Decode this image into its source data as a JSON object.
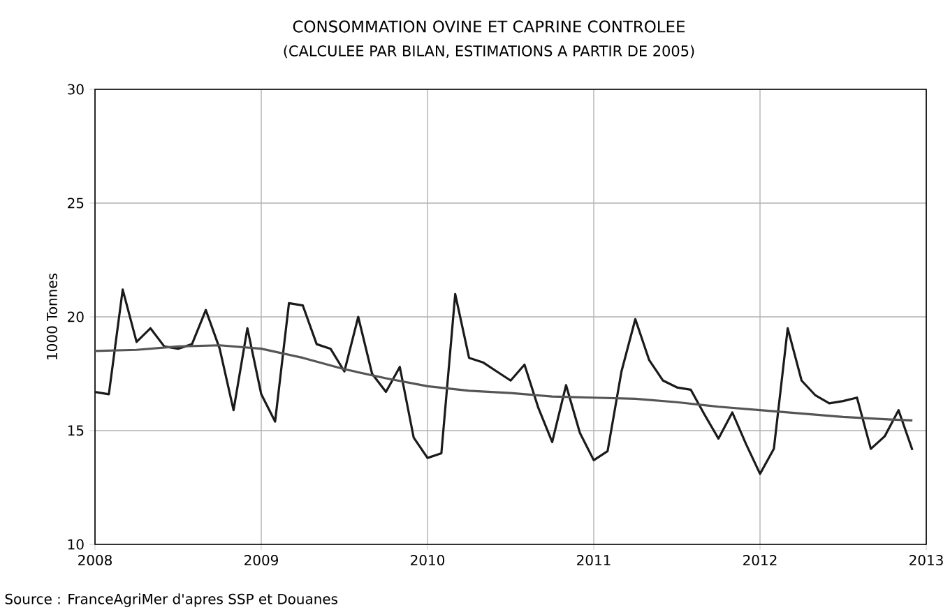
{
  "chart_data": {
    "type": "line",
    "title": "CONSOMMATION OVINE ET CAPRINE CONTROLEE",
    "subtitle": "(CALCULEE PAR BILAN, ESTIMATIONS A PARTIR DE 2005)",
    "ylabel": "1000 Tonnes",
    "annotations": [
      "Source : FranceAgriMer d'apres SSP et Douanes"
    ],
    "x": [
      "2008-01",
      "2008-02",
      "2008-03",
      "2008-04",
      "2008-05",
      "2008-06",
      "2008-07",
      "2008-08",
      "2008-09",
      "2008-10",
      "2008-11",
      "2008-12",
      "2009-01",
      "2009-02",
      "2009-03",
      "2009-04",
      "2009-05",
      "2009-06",
      "2009-07",
      "2009-08",
      "2009-09",
      "2009-10",
      "2009-11",
      "2009-12",
      "2010-01",
      "2010-02",
      "2010-03",
      "2010-04",
      "2010-05",
      "2010-06",
      "2010-07",
      "2010-08",
      "2010-09",
      "2010-10",
      "2010-11",
      "2010-12",
      "2011-01",
      "2011-02",
      "2011-03",
      "2011-04",
      "2011-05",
      "2011-06",
      "2011-07",
      "2011-08",
      "2011-09",
      "2011-10",
      "2011-11",
      "2011-12",
      "2012-01",
      "2012-02",
      "2012-03",
      "2012-04",
      "2012-05",
      "2012-06",
      "2012-07",
      "2012-08",
      "2012-09",
      "2012-10",
      "2012-11",
      "2012-12"
    ],
    "series": [
      {
        "color": "#1a1a1a",
        "values": [
          16.7,
          16.6,
          21.2,
          18.9,
          19.5,
          18.7,
          18.6,
          18.8,
          20.3,
          18.6,
          15.9,
          19.5,
          16.6,
          15.4,
          20.6,
          20.5,
          18.8,
          18.6,
          17.6,
          20.0,
          17.5,
          16.7,
          17.8,
          14.7,
          13.8,
          14.0,
          21.0,
          18.2,
          18.0,
          17.6,
          17.2,
          17.9,
          16.0,
          14.5,
          17.0,
          14.9,
          13.7,
          14.1,
          17.6,
          19.9,
          18.1,
          17.2,
          16.9,
          16.8,
          15.7,
          14.65,
          15.8,
          14.4,
          13.1,
          14.2,
          19.5,
          17.2,
          16.55,
          16.2,
          16.3,
          16.45,
          14.2,
          14.75,
          15.9,
          14.15
        ]
      },
      {
        "color": "#555555",
        "x": [
          "2008-01",
          "2008-04",
          "2008-07",
          "2008-10",
          "2009-01",
          "2009-04",
          "2009-07",
          "2009-10",
          "2010-01",
          "2010-04",
          "2010-07",
          "2010-10",
          "2011-01",
          "2011-04",
          "2011-07",
          "2011-10",
          "2012-01",
          "2012-04",
          "2012-07",
          "2012-10",
          "2012-12"
        ],
        "values": [
          18.5,
          18.55,
          18.7,
          18.75,
          18.6,
          18.2,
          17.7,
          17.3,
          16.95,
          16.75,
          16.65,
          16.5,
          16.45,
          16.4,
          16.25,
          16.05,
          15.9,
          15.75,
          15.6,
          15.5,
          15.45
        ]
      }
    ],
    "xlim": [
      "2008",
      "2013"
    ],
    "xticks": [
      "2008",
      "2009",
      "2010",
      "2011",
      "2012",
      "2013"
    ],
    "ylim": [
      10,
      30
    ],
    "yticks": [
      10,
      15,
      20,
      25,
      30
    ],
    "grid": true,
    "legend": false,
    "marker": "none",
    "line_style": "solid"
  }
}
